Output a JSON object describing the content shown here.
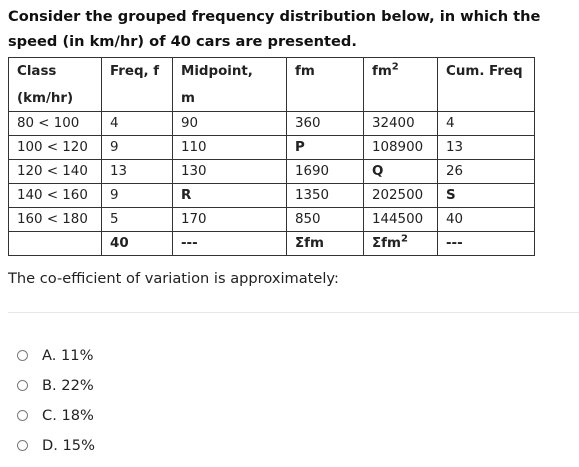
{
  "question": "Consider the grouped frequency distribution below, in which the speed (in km/hr) of 40 cars are presented.",
  "table": {
    "headers": {
      "class_top": "Class",
      "class_bottom": "(km/hr)",
      "freq": "Freq, f",
      "midpoint_top": "Midpoint,",
      "midpoint_bottom": "m",
      "fm": "fm",
      "fm2": "fm",
      "fm2_sup": "2",
      "cum": "Cum. Freq"
    },
    "rows": [
      {
        "class": "80 < 100",
        "freq": "4",
        "mid": "90",
        "fm": "360",
        "fm2": "32400",
        "cum": "4"
      },
      {
        "class": "100 < 120",
        "freq": "9",
        "mid": "110",
        "fm": "P",
        "fm2": "108900",
        "cum": "13"
      },
      {
        "class": "120 < 140",
        "freq": "13",
        "mid": "130",
        "fm": "1690",
        "fm2": "Q",
        "cum": "26"
      },
      {
        "class": "140 < 160",
        "freq": "9",
        "mid": "R",
        "fm": "1350",
        "fm2": "202500",
        "cum": "S"
      },
      {
        "class": "160 < 180",
        "freq": "5",
        "mid": "170",
        "fm": "850",
        "fm2": "144500",
        "cum": "40"
      }
    ],
    "totals": {
      "class": "",
      "freq": "40",
      "mid": "---",
      "fm": "Σfm",
      "fm2": "Σfm",
      "fm2_sup": "2",
      "cum": "---"
    }
  },
  "prompt": "The co-efficient of variation is approximately:",
  "options": [
    {
      "label": "A. 11%"
    },
    {
      "label": "B. 22%"
    },
    {
      "label": "C. 18%"
    },
    {
      "label": "D. 15%"
    }
  ]
}
